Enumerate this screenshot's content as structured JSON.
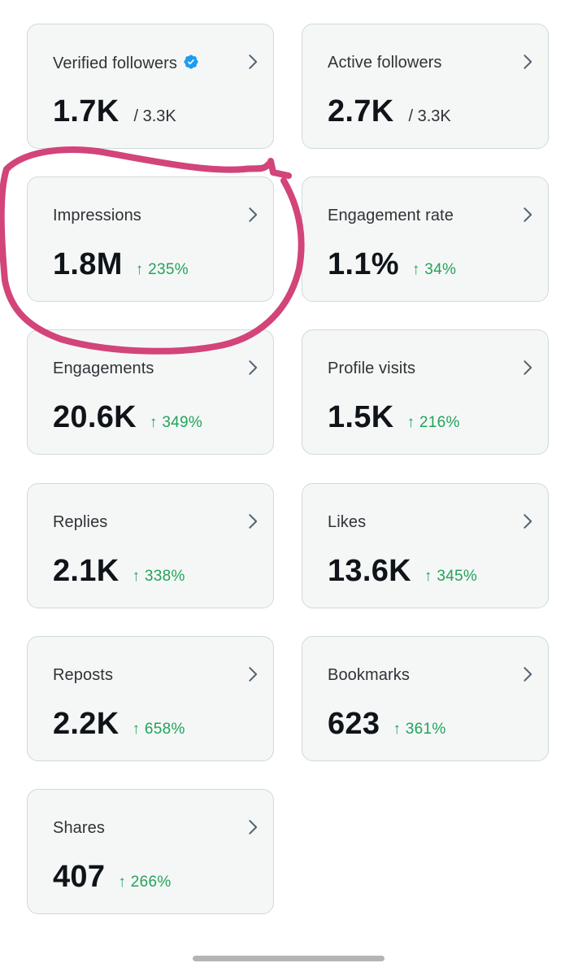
{
  "metrics": [
    {
      "label": "Verified followers",
      "value": "1.7K",
      "total": "/ 3.3K",
      "verified_icon": "verified-badge-icon"
    },
    {
      "label": "Active followers",
      "value": "2.7K",
      "total": "/ 3.3K"
    },
    {
      "label": "Impressions",
      "value": "1.8M",
      "arrow": "↑",
      "change": "235%"
    },
    {
      "label": "Engagement rate",
      "value": "1.1%",
      "arrow": "↑",
      "change": "34%"
    },
    {
      "label": "Engagements",
      "value": "20.6K",
      "arrow": "↑",
      "change": "349%"
    },
    {
      "label": "Profile visits",
      "value": "1.5K",
      "arrow": "↑",
      "change": "216%"
    },
    {
      "label": "Replies",
      "value": "2.1K",
      "arrow": "↑",
      "change": "338%"
    },
    {
      "label": "Likes",
      "value": "13.6K",
      "arrow": "↑",
      "change": "345%"
    },
    {
      "label": "Reposts",
      "value": "2.2K",
      "arrow": "↑",
      "change": "658%"
    },
    {
      "label": "Bookmarks",
      "value": "623",
      "arrow": "↑",
      "change": "361%"
    },
    {
      "label": "Shares",
      "value": "407",
      "arrow": "↑",
      "change": "266%"
    }
  ],
  "colors": {
    "card_background": "#f5f7f7",
    "card_border": "#cfd9de",
    "positive_change": "#22a35a",
    "verified_badge": "#1d9bf0",
    "annotation": "#d2447a"
  },
  "icons": {
    "chevron": "chevron-right-icon",
    "verified": "verified-badge-icon"
  }
}
